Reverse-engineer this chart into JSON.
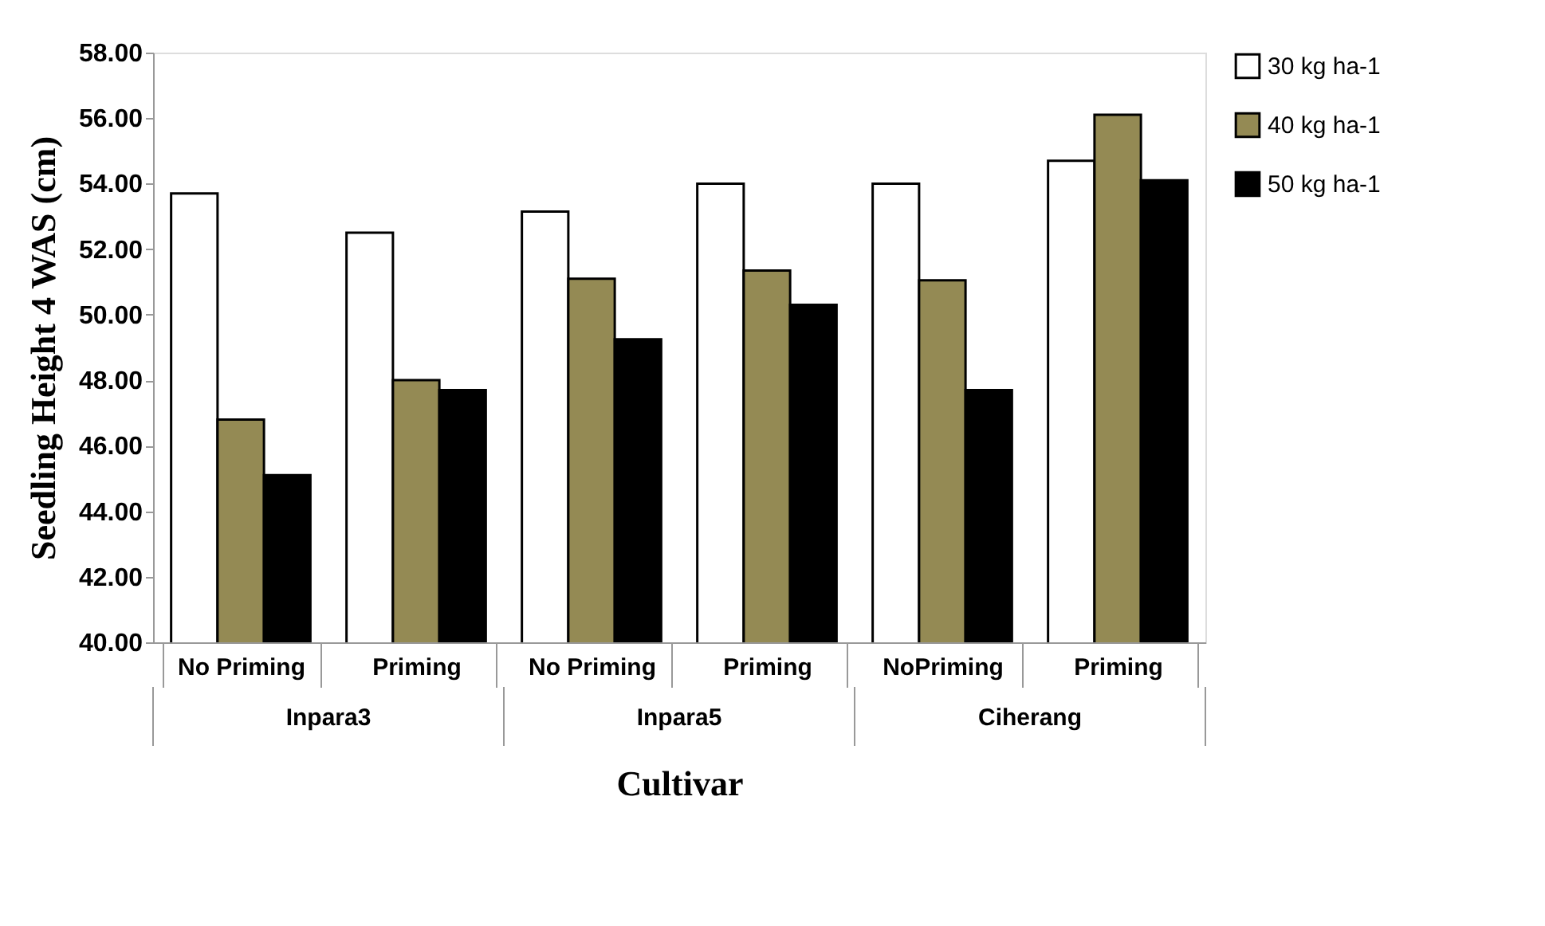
{
  "chart_data": {
    "type": "bar",
    "xlabel": "Cultivar",
    "ylabel": "Seedling Height 4 WAS (cm)",
    "categories": [
      "No Priming",
      "Priming",
      "No Priming",
      "Priming",
      "NoPriming",
      "Priming"
    ],
    "annotations": [
      "Inpara3",
      "Inpara5",
      "Ciherang"
    ],
    "series": [
      {
        "name": "30 kg ha-1",
        "color": "#ffffff",
        "values": [
          53.7,
          52.5,
          53.15,
          54.0,
          54.0,
          54.7
        ]
      },
      {
        "name": "40 kg ha-1",
        "color": "#948a54",
        "values": [
          46.8,
          48.0,
          51.1,
          51.35,
          51.05,
          56.1
        ]
      },
      {
        "name": "50 kg ha-1",
        "color": "#000000",
        "values": [
          45.1,
          47.7,
          49.25,
          50.3,
          47.7,
          54.1
        ]
      }
    ],
    "ylim": [
      40,
      58
    ],
    "yticks": [
      {
        "value": 40,
        "label": "40.00"
      },
      {
        "value": 42,
        "label": "42.00"
      },
      {
        "value": 44,
        "label": "44.00"
      },
      {
        "value": 46,
        "label": "46.00"
      },
      {
        "value": 48,
        "label": "48.00"
      },
      {
        "value": 50,
        "label": "50.00"
      },
      {
        "value": 52,
        "label": "52.00"
      },
      {
        "value": 54,
        "label": "54.00"
      },
      {
        "value": 56,
        "label": "56.00"
      },
      {
        "value": 58,
        "label": "58.00"
      }
    ],
    "grid": false,
    "legend": "right"
  }
}
